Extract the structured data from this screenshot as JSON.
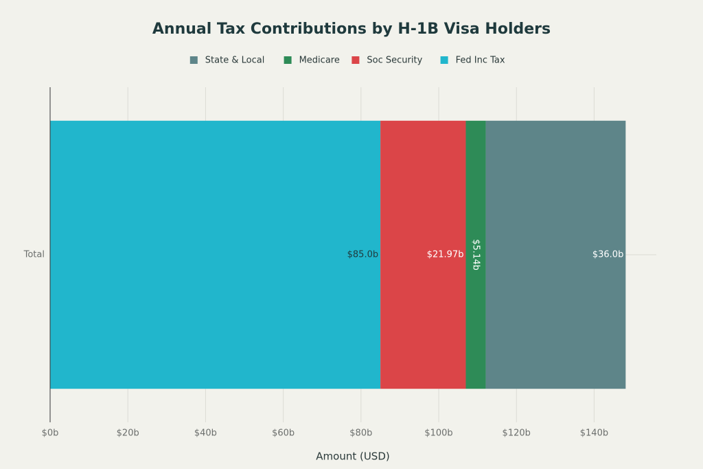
{
  "chart_data": {
    "type": "bar",
    "orientation": "horizontal",
    "stacked": true,
    "title": "Annual Tax Contributions by H-1B Visa Holders",
    "x_label": "Amount (USD)",
    "categories": [
      "Total"
    ],
    "series": [
      {
        "name": "Fed Inc Tax",
        "color": "#21b6cc",
        "values": [
          85.0
        ],
        "value_labels": [
          "$85.0b"
        ]
      },
      {
        "name": "Soc Security",
        "color": "#db4548",
        "values": [
          21.97
        ],
        "value_labels": [
          "$21.97b"
        ]
      },
      {
        "name": "Medicare",
        "color": "#2e8b57",
        "values": [
          5.14
        ],
        "value_labels": [
          "$5.14b"
        ]
      },
      {
        "name": "State & Local",
        "color": "#5e8589",
        "values": [
          36.0
        ],
        "value_labels": [
          "$36.0b"
        ]
      }
    ],
    "xlim": [
      0,
      156
    ],
    "xticks": [
      {
        "value": 0,
        "label": "$0b"
      },
      {
        "value": 20,
        "label": "$20b"
      },
      {
        "value": 40,
        "label": "$40b"
      },
      {
        "value": 60,
        "label": "$60b"
      },
      {
        "value": 80,
        "label": "$80b"
      },
      {
        "value": 100,
        "label": "$100b"
      },
      {
        "value": 120,
        "label": "$120b"
      },
      {
        "value": 140,
        "label": "$140b"
      }
    ],
    "grid": true
  }
}
